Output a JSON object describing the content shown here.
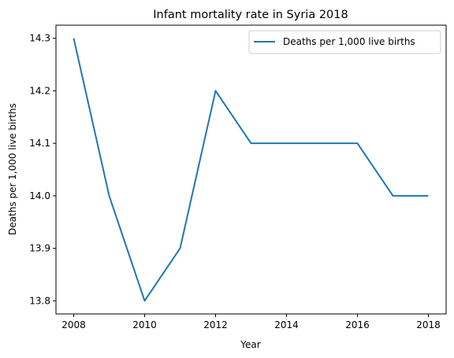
{
  "chart_data": {
    "type": "line",
    "title": "Infant mortality rate in Syria 2018",
    "xlabel": "Year",
    "ylabel": "Deaths per 1,000 live births",
    "x": [
      2008,
      2009,
      2010,
      2011,
      2012,
      2013,
      2014,
      2015,
      2016,
      2017,
      2018
    ],
    "series": [
      {
        "name": "Deaths per 1,000 live births",
        "color": "#1f77b4",
        "values": [
          14.3,
          14.0,
          13.8,
          13.9,
          14.2,
          14.1,
          14.1,
          14.1,
          14.1,
          14.0,
          14.0
        ]
      }
    ],
    "xticks": [
      "2008",
      "2010",
      "2012",
      "2014",
      "2016",
      "2018"
    ],
    "yticks": [
      "13.8",
      "13.9",
      "14.0",
      "14.1",
      "14.2",
      "14.3"
    ],
    "xlim": [
      2007.5,
      2018.5
    ],
    "ylim": [
      13.775,
      14.325
    ],
    "grid": false,
    "legend_position": "top-right"
  }
}
